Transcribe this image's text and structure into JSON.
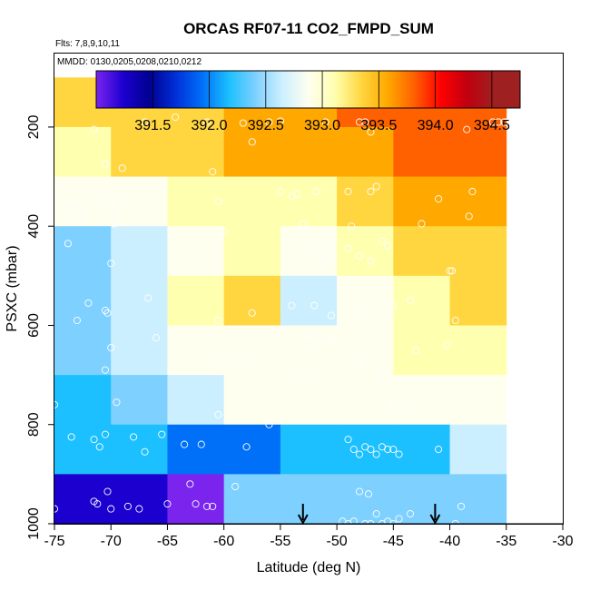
{
  "chart_data": {
    "type": "heatmap",
    "title": "ORCAS RF07-11 CO2_FMPD_SUM",
    "flights_label": "Flts: 7,8,9,10,11",
    "dates_label": "MMDD: 0130,0205,0208,0210,0212",
    "xlabel": "Latitude (deg N)",
    "ylabel": "PSXC (mbar)",
    "xlim": [
      -75,
      -30
    ],
    "ylim": [
      1000,
      50
    ],
    "y_inverted": true,
    "xticks": [
      -75,
      -70,
      -65,
      -60,
      -55,
      -50,
      -45,
      -40,
      -35,
      -30
    ],
    "xtick_labels": [
      "-75",
      "-70",
      "-65",
      "-60",
      "-55",
      "-50",
      "-45",
      "-40",
      "-35",
      "-30"
    ],
    "yticks": [
      200,
      400,
      600,
      800,
      1000
    ],
    "ytick_labels": [
      "200",
      "400",
      "600",
      "800",
      "1000"
    ],
    "x_edges": [
      -75,
      -70,
      -65,
      -60,
      -55,
      -50,
      -45,
      -40,
      -35
    ],
    "y_edges": [
      100,
      200,
      300,
      400,
      500,
      600,
      700,
      800,
      900,
      1000
    ],
    "grid_values": [
      [
        393.55,
        393.55,
        393.55,
        393.65,
        393.75,
        393.95,
        393.95,
        393.95
      ],
      [
        393.25,
        393.55,
        393.55,
        393.65,
        393.75,
        393.75,
        393.85,
        393.85
      ],
      [
        393.05,
        393.05,
        393.15,
        393.25,
        393.25,
        393.45,
        393.65,
        393.75
      ],
      [
        392.55,
        392.85,
        393.05,
        393.15,
        393.05,
        393.15,
        393.45,
        393.55
      ],
      [
        392.55,
        392.85,
        393.15,
        393.35,
        392.85,
        393.05,
        393.25,
        393.55
      ],
      [
        392.55,
        392.65,
        392.95,
        392.95,
        393.05,
        393.05,
        393.15,
        393.25
      ],
      [
        392.25,
        392.45,
        392.65,
        393.05,
        393.05,
        393.05,
        393.05,
        393.05
      ],
      [
        392.25,
        392.25,
        392.05,
        392.15,
        392.35,
        392.35,
        392.35,
        392.75
      ],
      [
        391.45,
        391.45,
        391.15,
        392.45,
        392.45,
        392.45,
        392.45,
        392.55
      ]
    ],
    "colorbar": {
      "min": 391.0,
      "max": 394.75,
      "ticks": [
        391.5,
        392.0,
        392.5,
        393.0,
        393.5,
        394.0,
        394.5
      ],
      "tick_labels": [
        "391.5",
        "392.0",
        "392.5",
        "393.0",
        "393.5",
        "394.0",
        "394.5"
      ]
    },
    "colors": [
      "#7a24ee",
      "#1c00d0",
      "#000090",
      "#0030d8",
      "#0070f8",
      "#1cc0ff",
      "#7ed0ff",
      "#ccefff",
      "#fffff0",
      "#ffffb0",
      "#ffd640",
      "#ffa800",
      "#ff6000",
      "#ff0000",
      "#c00010",
      "#9e2020"
    ],
    "markers": [
      {
        "lat": -53.0,
        "p": 1000
      },
      {
        "lat": -41.3,
        "p": 1000
      }
    ],
    "points": [
      [
        -71.5,
        205
      ],
      [
        -67.0,
        190
      ],
      [
        -64.3,
        180
      ],
      [
        -61.5,
        190
      ],
      [
        -58.3,
        192
      ],
      [
        -56.0,
        190
      ],
      [
        -55.0,
        188
      ],
      [
        -51.0,
        190
      ],
      [
        -48.0,
        190
      ],
      [
        -47.5,
        190
      ],
      [
        -47.0,
        210
      ],
      [
        -38.5,
        205
      ],
      [
        -36.2,
        190
      ],
      [
        -35.7,
        190
      ],
      [
        -35.2,
        190
      ],
      [
        -35.0,
        190
      ],
      [
        -70.5,
        275
      ],
      [
        -69.0,
        283
      ],
      [
        -61.0,
        290
      ],
      [
        -57.5,
        230
      ],
      [
        -73.5,
        360
      ],
      [
        -70.0,
        355
      ],
      [
        -69.5,
        370
      ],
      [
        -60.5,
        350
      ],
      [
        -55.0,
        330
      ],
      [
        -54.0,
        340
      ],
      [
        -53.5,
        335
      ],
      [
        -51.8,
        330
      ],
      [
        -49.0,
        330
      ],
      [
        -47.0,
        330
      ],
      [
        -46.5,
        320
      ],
      [
        -41.0,
        345
      ],
      [
        -38.0,
        330
      ],
      [
        -72.5,
        380
      ],
      [
        -69.7,
        395
      ],
      [
        -60.0,
        410
      ],
      [
        -53.0,
        395
      ],
      [
        -48.7,
        400
      ],
      [
        -42.5,
        395
      ],
      [
        -38.3,
        380
      ],
      [
        -73.8,
        435
      ],
      [
        -70.0,
        475
      ],
      [
        -64.5,
        465
      ],
      [
        -52.0,
        440
      ],
      [
        -51.5,
        460
      ],
      [
        -51.0,
        470
      ],
      [
        -50.5,
        430
      ],
      [
        -49.0,
        445
      ],
      [
        -48.0,
        460
      ],
      [
        -47.0,
        470
      ],
      [
        -46.0,
        430
      ],
      [
        -45.5,
        440
      ],
      [
        -40.0,
        490
      ],
      [
        -39.8,
        490
      ],
      [
        -72.0,
        555
      ],
      [
        -70.5,
        570
      ],
      [
        -70.3,
        575
      ],
      [
        -66.7,
        545
      ],
      [
        -60.5,
        590
      ],
      [
        -57.5,
        575
      ],
      [
        -54.0,
        560
      ],
      [
        -52.0,
        560
      ],
      [
        -50.5,
        580
      ],
      [
        -48.0,
        575
      ],
      [
        -45.0,
        560
      ],
      [
        -43.5,
        550
      ],
      [
        -39.5,
        590
      ],
      [
        -73.0,
        590
      ],
      [
        -70.0,
        645
      ],
      [
        -66.0,
        625
      ],
      [
        -60.0,
        680
      ],
      [
        -58.0,
        665
      ],
      [
        -53.0,
        700
      ],
      [
        -52.5,
        620
      ],
      [
        -50.5,
        630
      ],
      [
        -48.0,
        680
      ],
      [
        -46.0,
        700
      ],
      [
        -43.0,
        650
      ],
      [
        -40.3,
        640
      ],
      [
        -70.5,
        690
      ],
      [
        -75.0,
        760
      ],
      [
        -69.5,
        755
      ],
      [
        -60.5,
        780
      ],
      [
        -56.0,
        800
      ],
      [
        -45.0,
        760
      ],
      [
        -44.0,
        770
      ],
      [
        -73.5,
        825
      ],
      [
        -71.5,
        830
      ],
      [
        -71.0,
        845
      ],
      [
        -70.5,
        820
      ],
      [
        -68.0,
        825
      ],
      [
        -67.0,
        855
      ],
      [
        -65.5,
        820
      ],
      [
        -63.5,
        840
      ],
      [
        -62.0,
        840
      ],
      [
        -58.0,
        845
      ],
      [
        -49.0,
        830
      ],
      [
        -48.5,
        850
      ],
      [
        -48.0,
        860
      ],
      [
        -47.5,
        845
      ],
      [
        -47.0,
        850
      ],
      [
        -46.5,
        860
      ],
      [
        -46.0,
        845
      ],
      [
        -45.5,
        850
      ],
      [
        -45.0,
        850
      ],
      [
        -44.5,
        860
      ],
      [
        -41.0,
        850
      ],
      [
        -75.0,
        970
      ],
      [
        -71.5,
        955
      ],
      [
        -71.2,
        960
      ],
      [
        -70.3,
        935
      ],
      [
        -70.0,
        970
      ],
      [
        -68.5,
        965
      ],
      [
        -67.5,
        970
      ],
      [
        -65.0,
        960
      ],
      [
        -63.0,
        920
      ],
      [
        -62.5,
        960
      ],
      [
        -61.5,
        965
      ],
      [
        -61.0,
        965
      ],
      [
        -59.0,
        925
      ],
      [
        -49.5,
        995
      ],
      [
        -49.0,
        1000
      ],
      [
        -48.5,
        995
      ],
      [
        -47.5,
        1000
      ],
      [
        -47.0,
        1000
      ],
      [
        -46.5,
        980
      ],
      [
        -46.0,
        1000
      ],
      [
        -45.5,
        995
      ],
      [
        -45.0,
        1000
      ],
      [
        -44.5,
        990
      ],
      [
        -43.5,
        980
      ],
      [
        -39.5,
        1000
      ],
      [
        -39.0,
        965
      ],
      [
        -47.2,
        940
      ],
      [
        -48.0,
        935
      ]
    ]
  }
}
